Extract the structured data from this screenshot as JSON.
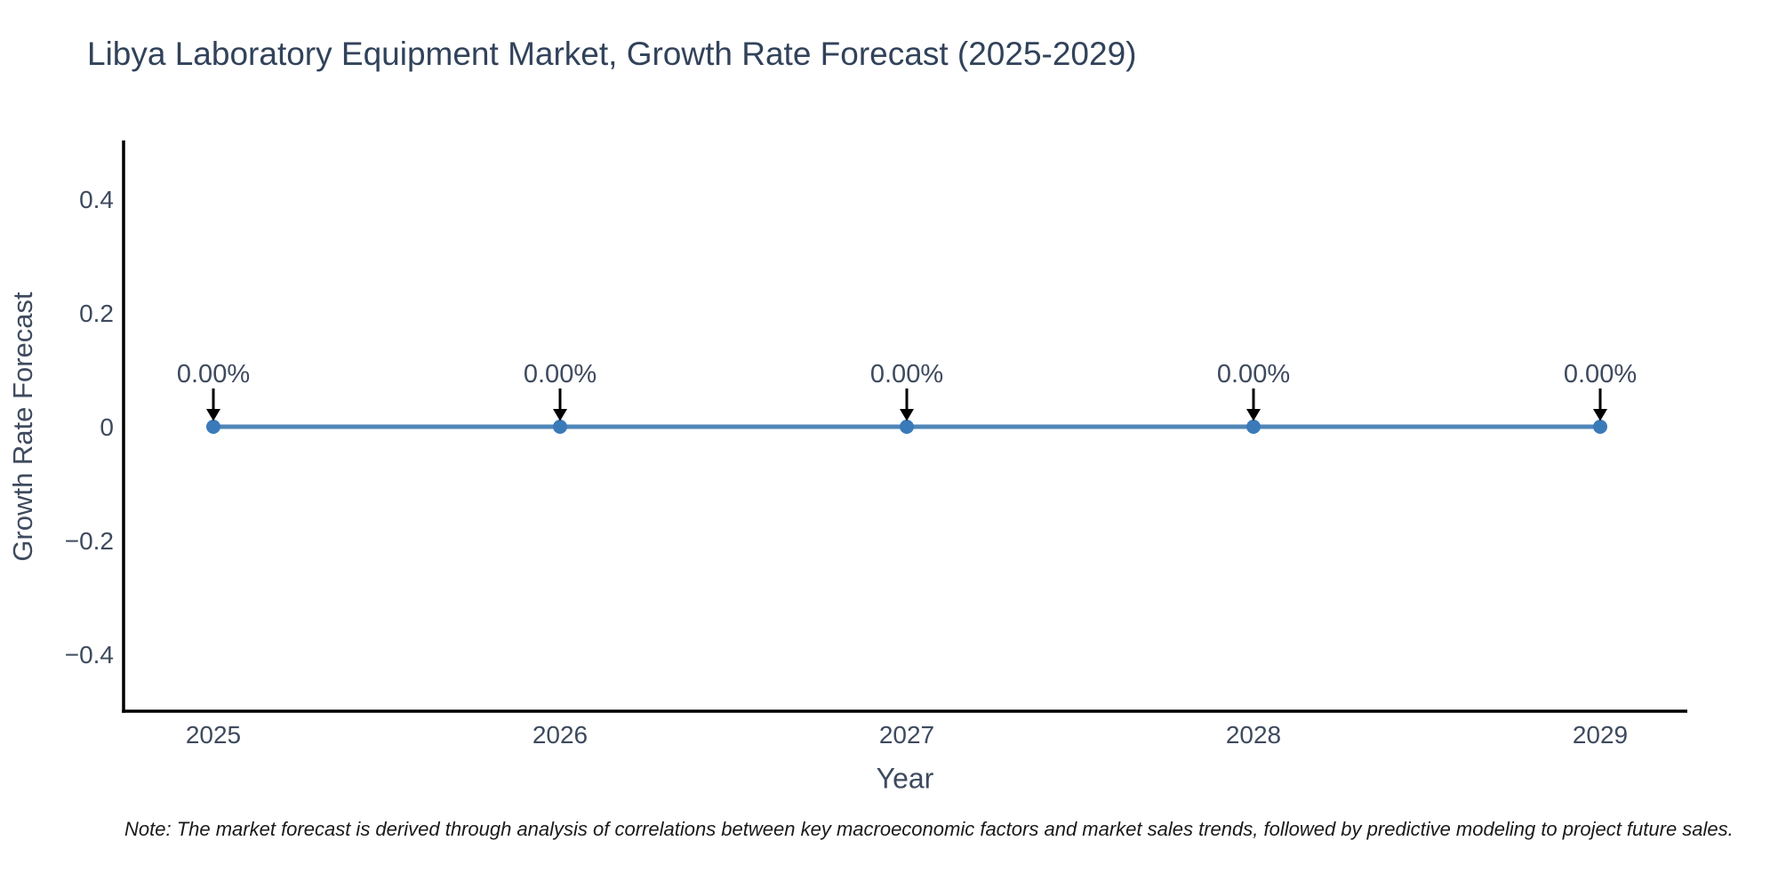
{
  "page": {
    "note": "Note: The market forecast is derived through analysis of correlations between key macroeconomic factors and market sales trends, followed by predictive modeling to project future sales."
  },
  "chart_data": {
    "type": "line",
    "title": "Libya Laboratory Equipment Market, Growth Rate Forecast (2025-2029)",
    "xlabel": "Year",
    "ylabel": "Growth Rate Forecast",
    "x": [
      2025,
      2026,
      2027,
      2028,
      2029
    ],
    "series": [
      {
        "name": "Growth Rate Forecast",
        "values": [
          0,
          0,
          0,
          0,
          0
        ]
      }
    ],
    "point_labels": [
      "0.00%",
      "0.00%",
      "0.00%",
      "0.00%",
      "0.00%"
    ],
    "xtick_labels": [
      "2025",
      "2026",
      "2027",
      "2028",
      "2029"
    ],
    "ytick_values": [
      0.4,
      0.2,
      0,
      -0.2,
      -0.4
    ],
    "ytick_labels": [
      "0.4",
      "0.2",
      "0",
      "−0.2",
      "−0.4"
    ],
    "ylim": [
      -0.51,
      0.51
    ],
    "xlim": [
      2024.74,
      2029.25
    ],
    "grid": false,
    "legend_position": "none",
    "colors": {
      "line": "#4f86b8",
      "marker": "#3b7ab8",
      "annotation_arrow": "#000000",
      "axis_line": "#000000",
      "tick_text": "#3e4a5e",
      "title_text": "#31425a",
      "note_text": "#1a1a1a"
    }
  }
}
